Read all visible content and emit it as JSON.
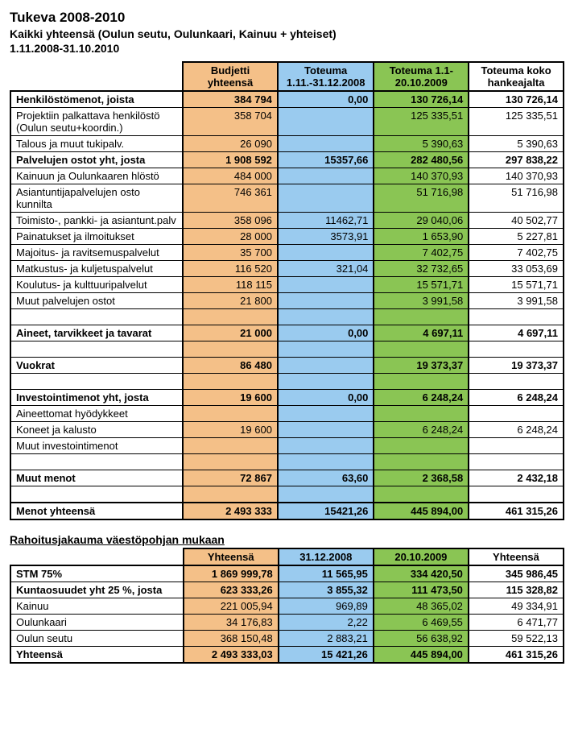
{
  "header": {
    "title": "Tukeva 2008-2010",
    "subtitle": "Kaikki yhteensä (Oulun seutu, Oulunkaari, Kainuu + yhteiset)",
    "daterange": "1.11.2008-31.10.2010"
  },
  "colors": {
    "col1_bg": "#f4c088",
    "col2_bg": "#9acbef",
    "col3_bg": "#8ac554",
    "col4_bg": "#ffffff",
    "border": "#000000"
  },
  "table1": {
    "headers": {
      "rowlabel": "",
      "c1": "Budjetti yhteensä",
      "c2": "Toteuma 1.11.-31.12.2008",
      "c3": "Toteuma 1.1-20.10.2009",
      "c4": "Toteuma koko hankeajalta"
    },
    "rows": [
      {
        "type": "bold",
        "label": "Henkilöstömenot, joista",
        "c1": "384 794",
        "c2": "0,00",
        "c3": "130 726,14",
        "c4": "130 726,14",
        "heavytop": true
      },
      {
        "type": "normal",
        "label": "Projektiin palkattava henkilöstö (Oulun seutu+koordin.)",
        "c1": "358 704",
        "c2": "",
        "c3": "125 335,51",
        "c4": "125 335,51"
      },
      {
        "type": "normal",
        "label": "Talous ja muut tukipalv.",
        "c1": "26 090",
        "c2": "",
        "c3": "5 390,63",
        "c4": "5 390,63"
      },
      {
        "type": "bold",
        "label": "Palvelujen ostot yht, josta",
        "c1": "1 908 592",
        "c2": "15357,66",
        "c3": "282 480,56",
        "c4": "297 838,22"
      },
      {
        "type": "normal",
        "label": "Kainuun ja Oulunkaaren hlöstö",
        "c1": "484 000",
        "c2": "",
        "c3": "140 370,93",
        "c4": "140 370,93"
      },
      {
        "type": "normal",
        "label": "Asiantuntijapalvelujen osto kunnilta",
        "c1": "746 361",
        "c2": "",
        "c3": "51 716,98",
        "c4": "51 716,98"
      },
      {
        "type": "normal",
        "label": "Toimisto-, pankki- ja asiantunt.palv",
        "c1": "358 096",
        "c2": "11462,71",
        "c3": "29 040,06",
        "c4": "40 502,77"
      },
      {
        "type": "normal",
        "label": "Painatukset ja ilmoitukset",
        "c1": "28 000",
        "c2": "3573,91",
        "c3": "1 653,90",
        "c4": "5 227,81"
      },
      {
        "type": "normal",
        "label": "Majoitus- ja ravitsemuspalvelut",
        "c1": "35 700",
        "c2": "",
        "c3": "7 402,75",
        "c4": "7 402,75"
      },
      {
        "type": "normal",
        "label": "Matkustus- ja kuljetuspalvelut",
        "c1": "116 520",
        "c2": "321,04",
        "c3": "32 732,65",
        "c4": "33 053,69"
      },
      {
        "type": "normal",
        "label": "Koulutus- ja kulttuuripalvelut",
        "c1": "118 115",
        "c2": "",
        "c3": "15 571,71",
        "c4": "15 571,71"
      },
      {
        "type": "normal",
        "label": "Muut palvelujen ostot",
        "c1": "21 800",
        "c2": "",
        "c3": "3 991,58",
        "c4": "3 991,58"
      },
      {
        "type": "spacer"
      },
      {
        "type": "bold",
        "label": "Aineet, tarvikkeet ja tavarat",
        "c1": "21 000",
        "c2": "0,00",
        "c3": "4 697,11",
        "c4": "4 697,11"
      },
      {
        "type": "spacer"
      },
      {
        "type": "bold",
        "label": "Vuokrat",
        "c1": "86 480",
        "c2": "",
        "c3": "19 373,37",
        "c4": "19 373,37"
      },
      {
        "type": "spacer"
      },
      {
        "type": "bold",
        "label": "Investointimenot yht, josta",
        "c1": "19 600",
        "c2": "0,00",
        "c3": "6 248,24",
        "c4": "6 248,24"
      },
      {
        "type": "normal",
        "label": "Aineettomat hyödykkeet",
        "c1": "",
        "c2": "",
        "c3": "",
        "c4": ""
      },
      {
        "type": "normal",
        "label": "Koneet ja kalusto",
        "c1": "19 600",
        "c2": "",
        "c3": "6 248,24",
        "c4": "6 248,24"
      },
      {
        "type": "normal",
        "label": "Muut investointimenot",
        "c1": "",
        "c2": "",
        "c3": "",
        "c4": ""
      },
      {
        "type": "spacer"
      },
      {
        "type": "bold",
        "label": "Muut menot",
        "c1": "72 867",
        "c2": "63,60",
        "c3": "2 368,58",
        "c4": "2 432,18"
      },
      {
        "type": "spacer"
      },
      {
        "type": "bold",
        "label": "Menot yhteensä",
        "c1": "2 493 333",
        "c2": "15421,26",
        "c3": "445 894,00",
        "c4": "461 315,26",
        "heavytop": true,
        "heavybottom": true
      }
    ]
  },
  "table2": {
    "section_title": "Rahoitusjakauma väestöpohjan mukaan",
    "headers": {
      "rowlabel": "",
      "c1": "Yhteensä",
      "c2": "31.12.2008",
      "c3": "20.10.2009",
      "c4": "Yhteensä"
    },
    "rows": [
      {
        "type": "bold",
        "label": "STM 75%",
        "c1": "1 869 999,78",
        "c2": "11 565,95",
        "c3": "334 420,50",
        "c4": "345 986,45",
        "heavytop": true
      },
      {
        "type": "bold",
        "label": "Kuntaosuudet yht 25 %, josta",
        "c1": "623 333,26",
        "c2": "3 855,32",
        "c3": "111 473,50",
        "c4": "115 328,82"
      },
      {
        "type": "normal",
        "label": "Kainuu",
        "c1": "221 005,94",
        "c2": "969,89",
        "c3": "48 365,02",
        "c4": "49 334,91"
      },
      {
        "type": "normal",
        "label": "Oulunkaari",
        "c1": "34 176,83",
        "c2": "2,22",
        "c3": "6 469,55",
        "c4": "6 471,77"
      },
      {
        "type": "normal",
        "label": "Oulun seutu",
        "c1": "368 150,48",
        "c2": "2 883,21",
        "c3": "56 638,92",
        "c4": "59 522,13"
      },
      {
        "type": "bold",
        "label": "Yhteensä",
        "c1": "2 493 333,03",
        "c2": "15 421,26",
        "c3": "445 894,00",
        "c4": "461 315,26",
        "heavybottom": true
      }
    ]
  }
}
